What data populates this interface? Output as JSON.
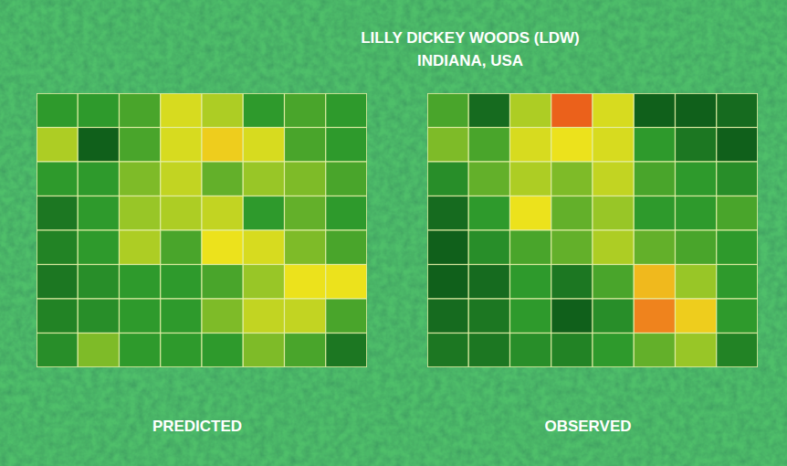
{
  "header": {
    "title": "LILLY DICKEY WOODS (LDW)",
    "subtitle": "INDIANA, USA"
  },
  "chart_data": [
    {
      "type": "heatmap",
      "title": "PREDICTED",
      "tick_labels": false,
      "zlim": [
        0,
        1
      ],
      "cells": [
        [
          0.3,
          0.3,
          0.35,
          0.65,
          0.55,
          0.3,
          0.35,
          0.3
        ],
        [
          0.55,
          0.05,
          0.35,
          0.65,
          0.75,
          0.65,
          0.35,
          0.3
        ],
        [
          0.3,
          0.3,
          0.45,
          0.6,
          0.4,
          0.5,
          0.45,
          0.35
        ],
        [
          0.15,
          0.3,
          0.5,
          0.55,
          0.6,
          0.3,
          0.4,
          0.3
        ],
        [
          0.2,
          0.3,
          0.55,
          0.35,
          0.7,
          0.65,
          0.45,
          0.35
        ],
        [
          0.15,
          0.25,
          0.3,
          0.3,
          0.35,
          0.5,
          0.7,
          0.7
        ],
        [
          0.2,
          0.25,
          0.3,
          0.3,
          0.45,
          0.6,
          0.6,
          0.35
        ],
        [
          0.25,
          0.45,
          0.3,
          0.3,
          0.3,
          0.45,
          0.35,
          0.15
        ]
      ]
    },
    {
      "type": "heatmap",
      "title": "OBSERVED",
      "tick_labels": false,
      "zlim": [
        0,
        1
      ],
      "cells": [
        [
          0.35,
          0.1,
          0.55,
          0.95,
          0.65,
          0.05,
          0.05,
          0.1
        ],
        [
          0.45,
          0.35,
          0.65,
          0.7,
          0.65,
          0.3,
          0.15,
          0.05
        ],
        [
          0.25,
          0.4,
          0.55,
          0.45,
          0.6,
          0.35,
          0.3,
          0.25
        ],
        [
          0.1,
          0.3,
          0.7,
          0.4,
          0.5,
          0.3,
          0.3,
          0.35
        ],
        [
          0.05,
          0.25,
          0.35,
          0.4,
          0.55,
          0.4,
          0.35,
          0.3
        ],
        [
          0.05,
          0.1,
          0.3,
          0.15,
          0.35,
          0.8,
          0.5,
          0.3
        ],
        [
          0.1,
          0.15,
          0.3,
          0.05,
          0.25,
          0.9,
          0.75,
          0.3
        ],
        [
          0.15,
          0.15,
          0.25,
          0.2,
          0.3,
          0.4,
          0.5,
          0.2
        ]
      ]
    }
  ]
}
